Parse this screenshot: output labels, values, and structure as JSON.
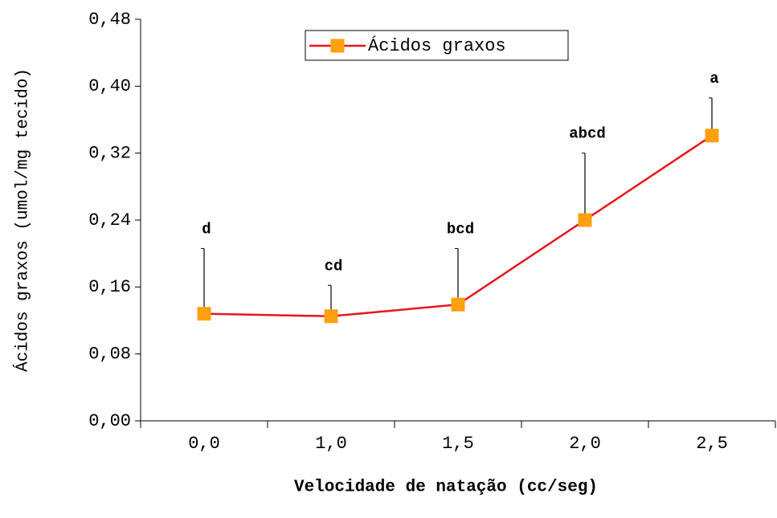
{
  "chart_data": {
    "type": "line",
    "xlabel": "Velocidade de natação (cc/seg)",
    "ylabel": "Ácidos graxos (umol/mg tecido)",
    "categories": [
      "0,0",
      "1,0",
      "1,5",
      "2,0",
      "2,5"
    ],
    "series": [
      {
        "name": "Ácidos graxos",
        "color": "#e8141c",
        "marker_color": "#ffa010",
        "values": [
          0.128,
          0.125,
          0.139,
          0.24,
          0.341
        ],
        "errors": [
          0.078,
          0.037,
          0.067,
          0.08,
          0.045
        ],
        "annotations": [
          "d",
          "cd",
          "bcd",
          "abcd",
          "a"
        ]
      }
    ],
    "ylim": [
      0,
      0.48
    ],
    "yticks": [
      {
        "value": 0,
        "label": "0,00"
      },
      {
        "value": 0.08,
        "label": "0,08"
      },
      {
        "value": 0.16,
        "label": "0,16"
      },
      {
        "value": 0.24,
        "label": "0,24"
      },
      {
        "value": 0.32,
        "label": "0,32"
      },
      {
        "value": 0.4,
        "label": "0,40"
      },
      {
        "value": 0.48,
        "label": "0,48"
      }
    ],
    "legend": "top"
  }
}
